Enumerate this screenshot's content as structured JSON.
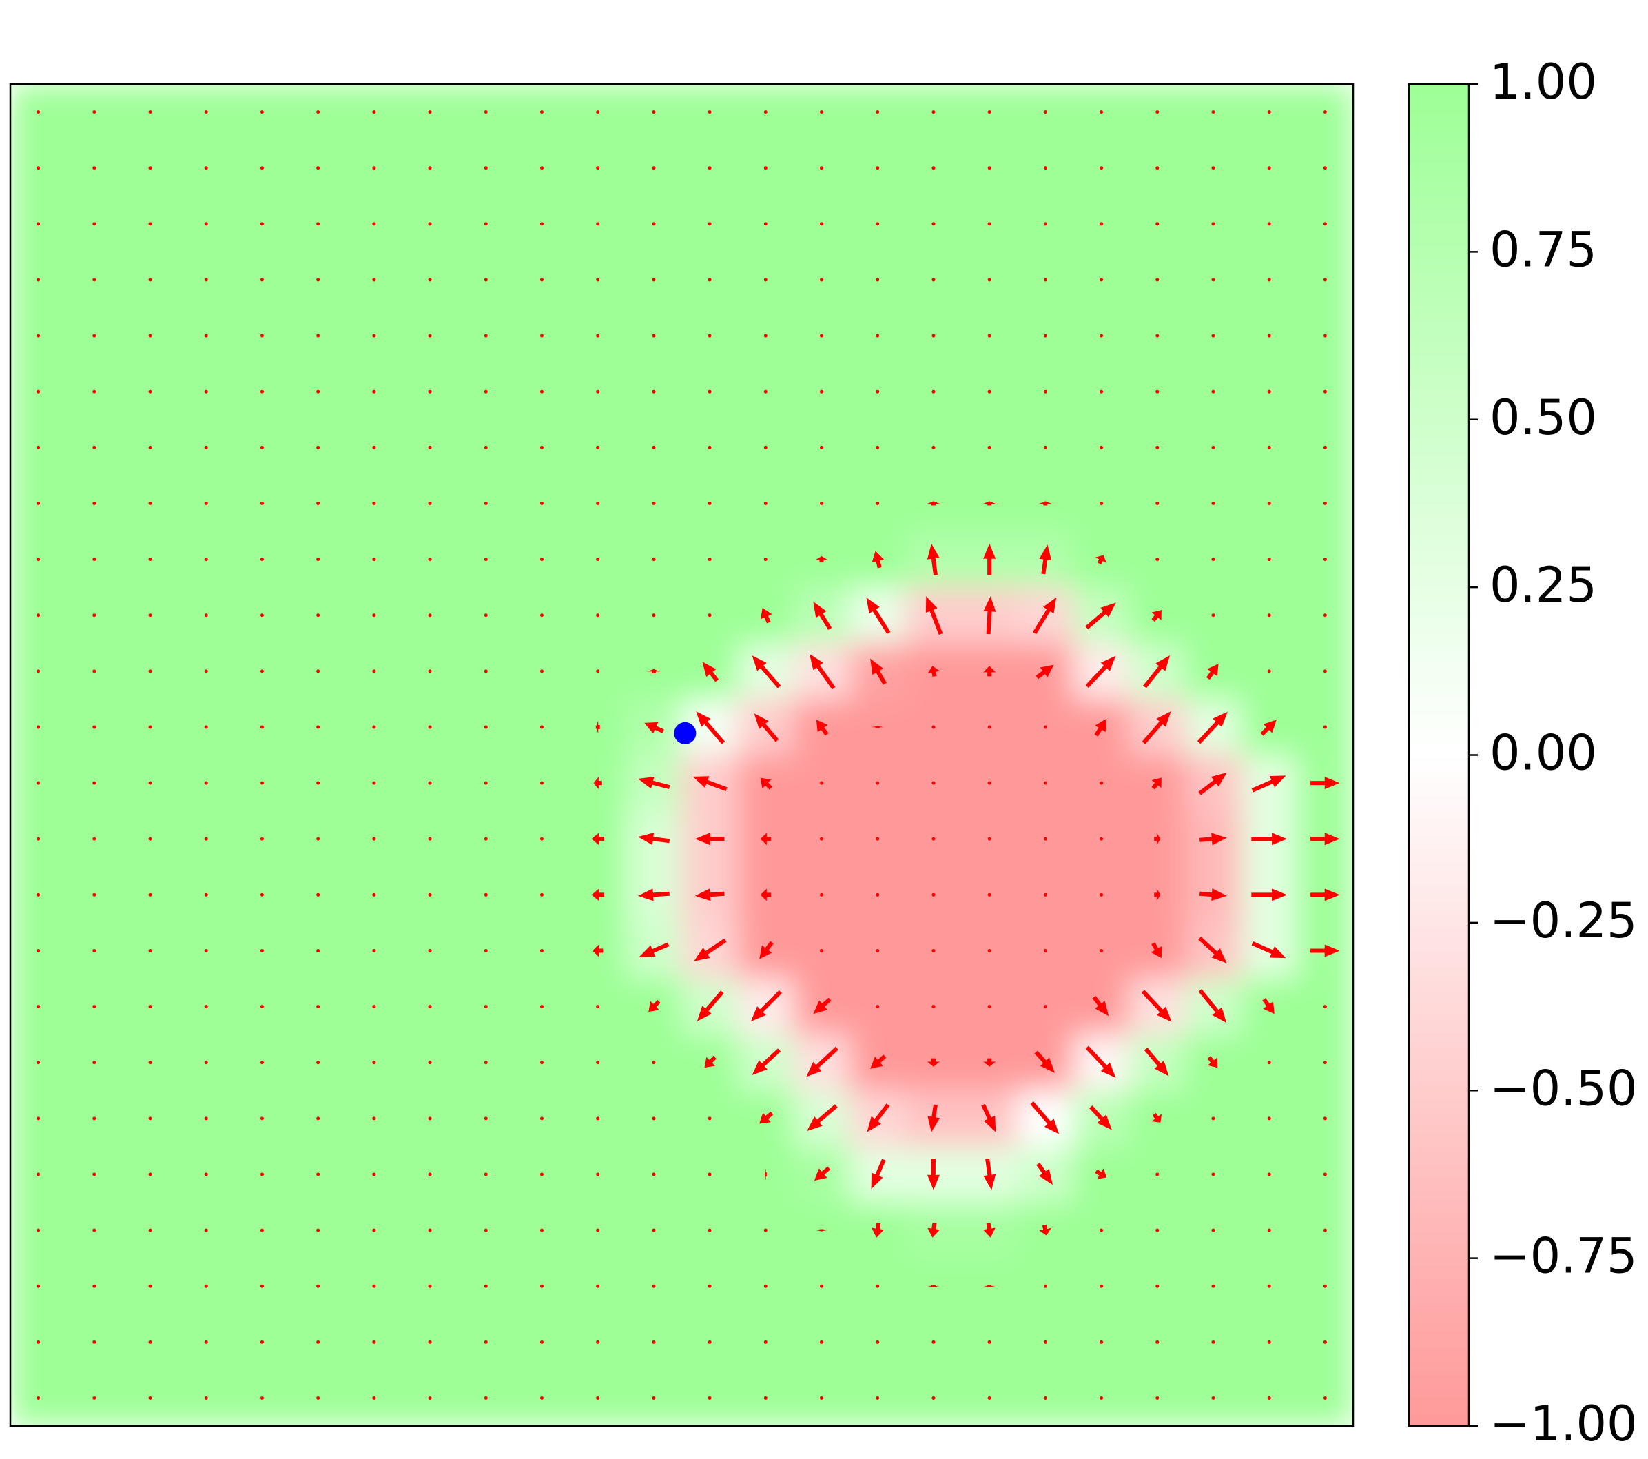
{
  "chart_data": {
    "type": "heatmap",
    "xlim": [
      -0.5,
      23.5
    ],
    "ylim": [
      23.5,
      -0.5
    ],
    "colors": [
      "#ff9999",
      "#ffffff",
      "#9dff96"
    ],
    "clim": [
      -1,
      1
    ],
    "colorbar_ticks": [
      {
        "value": 1,
        "label": "1.00"
      },
      0.75,
      {
        "value": 0.5,
        "label": "0.50"
      },
      0.25,
      {
        "value": 0,
        "label": "0.00"
      },
      {
        "value": -0.25,
        "label": "−0.25"
      },
      {
        "value": -0.5,
        "label": "−0.50"
      },
      {
        "value": -0.75,
        "label": "−0.75"
      },
      {
        "value": -1,
        "label": "−1.00"
      }
    ],
    "quiver_color": "#ff0000",
    "point": {
      "x": 11.56,
      "y": 11.11,
      "color": "#0000ff"
    },
    "values": [
      [
        1,
        1,
        1,
        1,
        1,
        1,
        1,
        1,
        1,
        1,
        1,
        1,
        1,
        1,
        1,
        1,
        1,
        1,
        1,
        1,
        1,
        1,
        1,
        1
      ],
      [
        1,
        1,
        1,
        1,
        1,
        1,
        1,
        1,
        1,
        1,
        1,
        1,
        1,
        1,
        1,
        1,
        1,
        1,
        1,
        1,
        1,
        1,
        1,
        1
      ],
      [
        1,
        1,
        1,
        1,
        1,
        1,
        1,
        1,
        1,
        1,
        1,
        1,
        1,
        1,
        1,
        1,
        1,
        1,
        1,
        1,
        1,
        1,
        1,
        1
      ],
      [
        1,
        1,
        1,
        1,
        1,
        1,
        1,
        1,
        1,
        1,
        1,
        1,
        1,
        1,
        1,
        1,
        1,
        1,
        1,
        1,
        1,
        1,
        1,
        1
      ],
      [
        1,
        1,
        1,
        1,
        1,
        1,
        1,
        1,
        1,
        1,
        1,
        1,
        1,
        1,
        1,
        1,
        1,
        1,
        1,
        1,
        1,
        1,
        1,
        1
      ],
      [
        1,
        1,
        1,
        1,
        1,
        1,
        1,
        1,
        1,
        1,
        1,
        1,
        1,
        1,
        1,
        1,
        1,
        1,
        1,
        1,
        1,
        1,
        1,
        1
      ],
      [
        1,
        1,
        1,
        1,
        1,
        1,
        1,
        1,
        1,
        1,
        1,
        1,
        1,
        1,
        1,
        1,
        1,
        1,
        1,
        1,
        1,
        1,
        1,
        1
      ],
      [
        1,
        1,
        1,
        1,
        1,
        1,
        1,
        1,
        1,
        1,
        1,
        1,
        1,
        1,
        1,
        1,
        1,
        1,
        1,
        1,
        1,
        1,
        1,
        1
      ],
      [
        1,
        1,
        1,
        1,
        1,
        1,
        1,
        1,
        1,
        1,
        1,
        1,
        1,
        1,
        1,
        1,
        0.8,
        0.8,
        0.8,
        1,
        1,
        1,
        1,
        1
      ],
      [
        1,
        1,
        1,
        1,
        1,
        1,
        1,
        1,
        1,
        1,
        1,
        1,
        1,
        1,
        0.7,
        0.2,
        -0.5,
        -0.5,
        -0.4,
        0.6,
        1,
        1,
        1,
        1
      ],
      [
        1,
        1,
        1,
        1,
        1,
        1,
        1,
        1,
        1,
        1,
        1,
        1,
        1,
        0.3,
        -0.3,
        -0.9,
        -1,
        -1,
        -1,
        -0.2,
        0.5,
        1,
        1,
        1
      ],
      [
        1,
        1,
        1,
        1,
        1,
        1,
        1,
        1,
        1,
        1,
        1,
        0.8,
        0.1,
        -0.5,
        -1,
        -1,
        -1,
        -1,
        -1,
        -1,
        -0.5,
        0.3,
        1,
        1
      ],
      [
        1,
        1,
        1,
        1,
        1,
        1,
        1,
        1,
        1,
        1,
        1,
        0.6,
        -0.5,
        -1,
        -1,
        -1,
        -1,
        -1,
        -1,
        -1,
        -1,
        -0.6,
        0.3,
        1
      ],
      [
        1,
        1,
        1,
        1,
        1,
        1,
        1,
        1,
        1,
        1,
        1,
        0.4,
        -0.5,
        -1,
        -1,
        -1,
        -1,
        -1,
        -1,
        -1,
        -1,
        -0.7,
        0.3,
        1
      ],
      [
        1,
        1,
        1,
        1,
        1,
        1,
        1,
        1,
        1,
        1,
        1,
        0.4,
        -0.5,
        -1,
        -1,
        -1,
        -1,
        -1,
        -1,
        -1,
        -1,
        -0.7,
        0.3,
        1
      ],
      [
        1,
        1,
        1,
        1,
        1,
        1,
        1,
        1,
        1,
        1,
        1,
        0.5,
        -0.4,
        -1,
        -1,
        -1,
        -1,
        -1,
        -1,
        -1,
        -1,
        -0.6,
        0.3,
        1
      ],
      [
        1,
        1,
        1,
        1,
        1,
        1,
        1,
        1,
        1,
        1,
        1,
        1,
        0.5,
        -0.2,
        -1,
        -1,
        -1,
        -1,
        -1,
        -1,
        -0.3,
        0.5,
        1,
        1
      ],
      [
        1,
        1,
        1,
        1,
        1,
        1,
        1,
        1,
        1,
        1,
        1,
        1,
        1,
        0.5,
        -0.3,
        -1,
        -1,
        -1,
        -1,
        -0.1,
        0.6,
        1,
        1,
        1
      ],
      [
        1,
        1,
        1,
        1,
        1,
        1,
        1,
        1,
        1,
        1,
        1,
        1,
        1,
        1,
        0.4,
        -0.4,
        -0.6,
        -0.6,
        0,
        0.7,
        1,
        1,
        1,
        1
      ],
      [
        1,
        1,
        1,
        1,
        1,
        1,
        1,
        1,
        1,
        1,
        1,
        1,
        1,
        1,
        0.9,
        0.3,
        0.3,
        0.3,
        0.5,
        1,
        1,
        1,
        1,
        1
      ],
      [
        1,
        1,
        1,
        1,
        1,
        1,
        1,
        1,
        1,
        1,
        1,
        1,
        1,
        1,
        1,
        1,
        0.9,
        0.9,
        1,
        1,
        1,
        1,
        1,
        1
      ],
      [
        1,
        1,
        1,
        1,
        1,
        1,
        1,
        1,
        1,
        1,
        1,
        1,
        1,
        1,
        1,
        1,
        1,
        1,
        1,
        1,
        1,
        1,
        1,
        1
      ],
      [
        1,
        1,
        1,
        1,
        1,
        1,
        1,
        1,
        1,
        1,
        1,
        1,
        1,
        1,
        1,
        1,
        1,
        1,
        1,
        1,
        1,
        1,
        1,
        1
      ],
      [
        1,
        1,
        1,
        1,
        1,
        1,
        1,
        1,
        1,
        1,
        1,
        1,
        1,
        1,
        1,
        1,
        1,
        1,
        1,
        1,
        1,
        1,
        1,
        1
      ]
    ]
  }
}
